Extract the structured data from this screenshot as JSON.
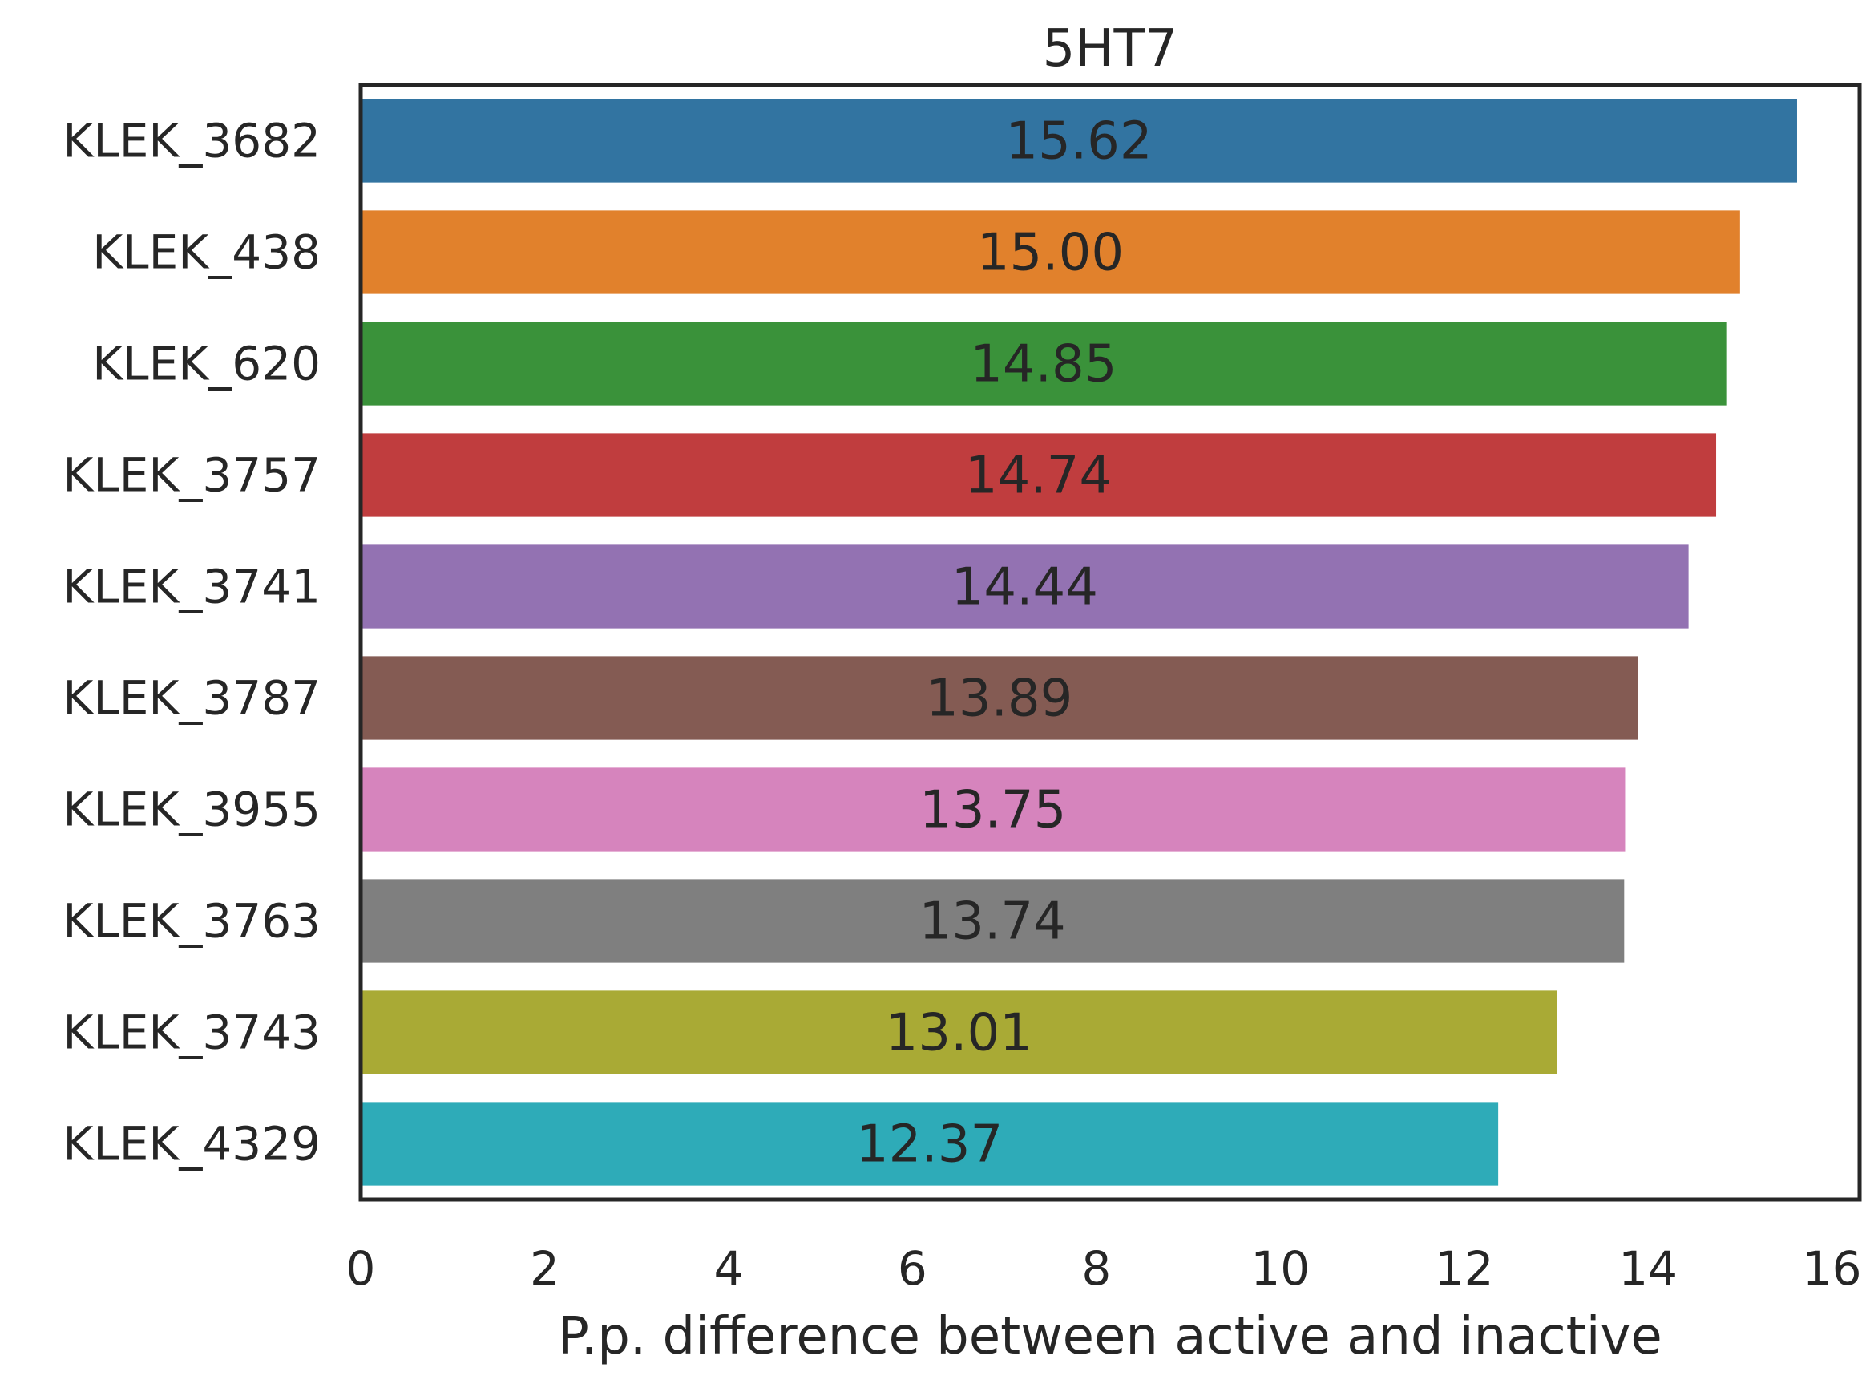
{
  "chart_data": {
    "type": "bar",
    "orientation": "horizontal",
    "title": "5HT7",
    "xlabel": "P.p. difference between active and inactive",
    "ylabel": "",
    "xlim": [
      0,
      16.3
    ],
    "xticks": [
      0,
      2,
      4,
      6,
      8,
      10,
      12,
      14,
      16
    ],
    "xtick_labels": [
      "0",
      "2",
      "4",
      "6",
      "8",
      "10",
      "12",
      "14",
      "16"
    ],
    "grid": false,
    "categories": [
      "KLEK_3682",
      "KLEK_438",
      "KLEK_620",
      "KLEK_3757",
      "KLEK_3741",
      "KLEK_3787",
      "KLEK_3955",
      "KLEK_3763",
      "KLEK_3743",
      "KLEK_4329"
    ],
    "values": [
      15.62,
      15.0,
      14.85,
      14.74,
      14.44,
      13.89,
      13.75,
      13.74,
      13.01,
      12.37
    ],
    "value_labels": [
      "15.62",
      "15.00",
      "14.85",
      "14.74",
      "14.44",
      "13.89",
      "13.75",
      "13.74",
      "13.01",
      "12.37"
    ],
    "colors": [
      "#3274a1",
      "#e1812c",
      "#3a923a",
      "#c03d3e",
      "#9372b2",
      "#845b53",
      "#d684bd",
      "#7f7f7f",
      "#a9aa35",
      "#2eabb8"
    ]
  }
}
